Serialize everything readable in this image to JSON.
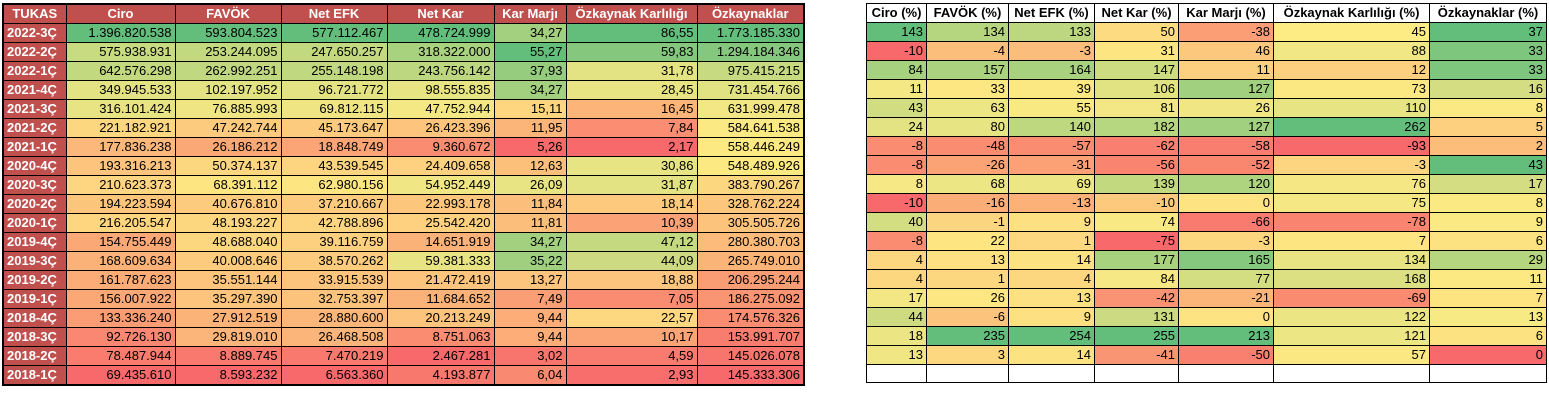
{
  "left": {
    "headers": [
      "TUKAS",
      "Ciro",
      "FAVÖK",
      "Net EFK",
      "Net Kar",
      "Kar Marjı",
      "Özkaynak Karlılığı",
      "Özkaynaklar"
    ],
    "rows": [
      [
        "2022-3Ç",
        "1.396.820.538",
        "593.804.523",
        "577.112.467",
        "478.724.999",
        "34,27",
        "86,55",
        "1.773.185.330"
      ],
      [
        "2022-2Ç",
        "575.938.931",
        "253.244.095",
        "247.650.257",
        "318.322.000",
        "55,27",
        "59,83",
        "1.294.184.346"
      ],
      [
        "2022-1Ç",
        "642.576.298",
        "262.992.251",
        "255.148.198",
        "243.756.142",
        "37,93",
        "31,78",
        "975.415.215"
      ],
      [
        "2021-4Ç",
        "349.945.533",
        "102.197.952",
        "96.721.772",
        "98.555.835",
        "34,27",
        "28,45",
        "731.454.766"
      ],
      [
        "2021-3Ç",
        "316.101.424",
        "76.885.993",
        "69.812.115",
        "47.752.944",
        "15,11",
        "16,45",
        "631.999.478"
      ],
      [
        "2021-2Ç",
        "221.182.921",
        "47.242.744",
        "45.173.647",
        "26.423.396",
        "11,95",
        "7,84",
        "584.641.538"
      ],
      [
        "2021-1Ç",
        "177.836.238",
        "26.186.212",
        "18.848.749",
        "9.360.672",
        "5,26",
        "2,17",
        "558.446.249"
      ],
      [
        "2020-4Ç",
        "193.316.213",
        "50.374.137",
        "43.539.545",
        "24.409.658",
        "12,63",
        "30,86",
        "548.489.926"
      ],
      [
        "2020-3Ç",
        "210.623.373",
        "68.391.112",
        "62.980.156",
        "54.952.449",
        "26,09",
        "31,87",
        "383.790.267"
      ],
      [
        "2020-2Ç",
        "194.223.594",
        "40.676.810",
        "37.210.667",
        "22.993.178",
        "11,84",
        "18,14",
        "328.762.224"
      ],
      [
        "2020-1Ç",
        "216.205.547",
        "48.193.227",
        "42.788.896",
        "25.542.420",
        "11,81",
        "10,39",
        "305.505.726"
      ],
      [
        "2019-4Ç",
        "154.755.449",
        "48.688.040",
        "39.116.759",
        "14.651.919",
        "34,27",
        "47,12",
        "280.380.703"
      ],
      [
        "2019-3Ç",
        "168.609.634",
        "40.008.646",
        "38.570.262",
        "59.381.333",
        "35,22",
        "44,09",
        "265.749.010"
      ],
      [
        "2019-2Ç",
        "161.787.623",
        "35.551.144",
        "33.915.539",
        "21.472.419",
        "13,27",
        "18,88",
        "206.295.244"
      ],
      [
        "2019-1Ç",
        "156.007.922",
        "35.297.390",
        "32.753.397",
        "11.684.652",
        "7,49",
        "7,05",
        "186.275.092"
      ],
      [
        "2018-4Ç",
        "133.336.240",
        "27.912.519",
        "28.880.600",
        "20.213.249",
        "9,44",
        "22,57",
        "174.576.326"
      ],
      [
        "2018-3Ç",
        "92.726.130",
        "29.819.010",
        "26.468.508",
        "8.751.063",
        "9,44",
        "10,17",
        "153.991.707"
      ],
      [
        "2018-2Ç",
        "78.487.944",
        "8.889.745",
        "7.470.219",
        "2.467.281",
        "3,02",
        "4,59",
        "145.026.078"
      ],
      [
        "2018-1Ç",
        "69.435.610",
        "8.593.232",
        "6.563.360",
        "4.193.877",
        "6,04",
        "2,93",
        "145.333.306"
      ]
    ],
    "colors": [
      [
        "#63be7b",
        "#63be7b",
        "#63be7b",
        "#63be7b",
        "#a3d07f",
        "#63be7b",
        "#63be7b"
      ],
      [
        "#c9db81",
        "#c2d980",
        "#c2d980",
        "#a9d27f",
        "#63be7b",
        "#84c77d",
        "#84c77d"
      ],
      [
        "#c2d980",
        "#c0d880",
        "#c0d880",
        "#bcd780",
        "#96cc7e",
        "#e4e383",
        "#c7da81"
      ],
      [
        "#e3e383",
        "#e4e383",
        "#e4e383",
        "#e6e483",
        "#a3d07f",
        "#e8e483",
        "#e1e282"
      ],
      [
        "#e8e483",
        "#efe683",
        "#efe683",
        "#f3e884",
        "#fed680",
        "#fcb479",
        "#f2e784"
      ],
      [
        "#fdd680",
        "#fccb7e",
        "#fccb7e",
        "#fcc47c",
        "#fcb579",
        "#fa8d72",
        "#fbe983"
      ],
      [
        "#fcb87a",
        "#fba877",
        "#fba475",
        "#fa8c71",
        "#f8696b",
        "#f8696b",
        "#fde982"
      ],
      [
        "#fcc47c",
        "#fdd680",
        "#fdd480",
        "#fdd17f",
        "#fcc07b",
        "#e6e483",
        "#fde982"
      ],
      [
        "#fed580",
        "#fde682",
        "#fde682",
        "#f0e784",
        "#e9e483",
        "#e3e383",
        "#fdd680"
      ],
      [
        "#fcc57c",
        "#fccb7e",
        "#fccb7e",
        "#fcc67d",
        "#fcbe7b",
        "#fdc97d",
        "#fcc67d"
      ],
      [
        "#fed680",
        "#fdd680",
        "#fdd580",
        "#fdd17f",
        "#fcbe7b",
        "#fba376",
        "#fcc37c"
      ],
      [
        "#fba877",
        "#fdd680",
        "#fdd07f",
        "#fbb278",
        "#a3d07f",
        "#c4d980",
        "#fcbb7a"
      ],
      [
        "#fbb278",
        "#fccb7e",
        "#fccb7e",
        "#e8e483",
        "#9fcf7f",
        "#cdda81",
        "#fbb478"
      ],
      [
        "#fbac77",
        "#fcc47c",
        "#fcc47c",
        "#fcc47c",
        "#fcc47c",
        "#fcc47c",
        "#fa9d74"
      ],
      [
        "#fba877",
        "#fcc47c",
        "#fcc37c",
        "#fbb278",
        "#fa9f75",
        "#fa8c71",
        "#fa9573"
      ],
      [
        "#fa9d74",
        "#fbb378",
        "#fbb679",
        "#fcc47c",
        "#fcad78",
        "#fdd880",
        "#fa8c71"
      ],
      [
        "#f98772",
        "#fbb479",
        "#fbb479",
        "#fa8c71",
        "#fcad78",
        "#fba476",
        "#f97d6f"
      ],
      [
        "#f97c6e",
        "#f9796e",
        "#f9796e",
        "#f8696b",
        "#f8756d",
        "#f97a6e",
        "#f8756d"
      ],
      [
        "#f8696b",
        "#f8696b",
        "#f8696b",
        "#f9786e",
        "#f98a71",
        "#f86e6c",
        "#f8696b"
      ]
    ]
  },
  "right": {
    "headers": [
      "Ciro (%)",
      "FAVÖK (%)",
      "Net EFK (%)",
      "Net Kar (%)",
      "Kar Marjı (%)",
      "Özkaynak Karlılığı (%)",
      "Özkaynaklar (%)"
    ],
    "rows": [
      [
        "143",
        "134",
        "133",
        "50",
        "-38",
        "45",
        "37"
      ],
      [
        "-10",
        "-4",
        "-3",
        "31",
        "46",
        "88",
        "33"
      ],
      [
        "84",
        "157",
        "164",
        "147",
        "11",
        "12",
        "33"
      ],
      [
        "11",
        "33",
        "39",
        "106",
        "127",
        "73",
        "16"
      ],
      [
        "43",
        "63",
        "55",
        "81",
        "26",
        "110",
        "8"
      ],
      [
        "24",
        "80",
        "140",
        "182",
        "127",
        "262",
        "5"
      ],
      [
        "-8",
        "-48",
        "-57",
        "-62",
        "-58",
        "-93",
        "2"
      ],
      [
        "-8",
        "-26",
        "-31",
        "-56",
        "-52",
        "-3",
        "43"
      ],
      [
        "8",
        "68",
        "69",
        "139",
        "120",
        "76",
        "17"
      ],
      [
        "-10",
        "-16",
        "-13",
        "-10",
        "0",
        "75",
        "8"
      ],
      [
        "40",
        "-1",
        "9",
        "74",
        "-66",
        "-78",
        "9"
      ],
      [
        "-8",
        "22",
        "1",
        "-75",
        "-3",
        "7",
        "6"
      ],
      [
        "4",
        "13",
        "14",
        "177",
        "165",
        "134",
        "29"
      ],
      [
        "4",
        "1",
        "4",
        "84",
        "77",
        "168",
        "11"
      ],
      [
        "17",
        "26",
        "13",
        "-42",
        "-21",
        "-69",
        "7"
      ],
      [
        "44",
        "-6",
        "9",
        "131",
        "0",
        "122",
        "13"
      ],
      [
        "18",
        "235",
        "254",
        "255",
        "213",
        "121",
        "6"
      ],
      [
        "13",
        "3",
        "14",
        "-41",
        "-50",
        "57",
        "0"
      ],
      [
        "",
        "",
        "",
        "",
        "",
        "",
        ""
      ]
    ],
    "colors": [
      [
        "#63be7b",
        "#b5d57f",
        "#bcd780",
        "#fcdb81",
        "#fb9e75",
        "#fdeb84",
        "#63be7b"
      ],
      [
        "#f8696b",
        "#fcbe7b",
        "#fbbd7b",
        "#fde582",
        "#fcc87d",
        "#f1e784",
        "#7ec67d"
      ],
      [
        "#a6d17f",
        "#abd37f",
        "#a9d27f",
        "#cddb81",
        "#fdd07f",
        "#fcd07f",
        "#7ec67d"
      ],
      [
        "#f4e884",
        "#fce783",
        "#fce883",
        "#e1e282",
        "#a1d07f",
        "#fbe883",
        "#d5dd82"
      ],
      [
        "#d2dd82",
        "#ede685",
        "#f8e983",
        "#f2e784",
        "#f0e784",
        "#e7e483",
        "#fbe983"
      ],
      [
        "#e4e383",
        "#e6e483",
        "#bed880",
        "#b6d680",
        "#a1d07f",
        "#63be7b",
        "#fcd07f"
      ],
      [
        "#fa8c71",
        "#fa8c71",
        "#fa8c71",
        "#f98070",
        "#f97e6f",
        "#f8696b",
        "#fcbd7b"
      ],
      [
        "#fa8c71",
        "#fca376",
        "#fca075",
        "#f98570",
        "#f98770",
        "#fdd480",
        "#63be7b"
      ],
      [
        "#f6e884",
        "#ede685",
        "#ede685",
        "#c3d980",
        "#aed47f",
        "#f5e884",
        "#d5dd82"
      ],
      [
        "#f8696b",
        "#fbad78",
        "#fcb179",
        "#fcc97d",
        "#fde382",
        "#f5e884",
        "#fbe983"
      ],
      [
        "#d3dd82",
        "#fcd580",
        "#fde081",
        "#f9e984",
        "#f97a6e",
        "#f98470",
        "#fbe983"
      ],
      [
        "#fa8c71",
        "#fde682",
        "#fdd880",
        "#f8696b",
        "#fdd780",
        "#fde682",
        "#fde281"
      ],
      [
        "#fdd680",
        "#fde081",
        "#fde281",
        "#a9d27f",
        "#86c87d",
        "#e8e483",
        "#b5d57f"
      ],
      [
        "#fdd680",
        "#fdd680",
        "#fdd680",
        "#f6e884",
        "#d3dd82",
        "#dde082",
        "#fde982"
      ],
      [
        "#f2e784",
        "#fde782",
        "#fde081",
        "#fa9373",
        "#fcb579",
        "#fa8b71",
        "#fde481"
      ],
      [
        "#cfdb81",
        "#fcc37c",
        "#fde081",
        "#ccdb81",
        "#fde382",
        "#ebe583",
        "#f7e984"
      ],
      [
        "#ebe583",
        "#63be7b",
        "#63be7b",
        "#63be7b",
        "#63be7b",
        "#ede685",
        "#fde281"
      ],
      [
        "#f0e784",
        "#fdd880",
        "#fde281",
        "#fa9574",
        "#f97f6f",
        "#fce883",
        "#f8696b"
      ],
      [
        "#ffffff",
        "#ffffff",
        "#ffffff",
        "#ffffff",
        "#ffffff",
        "#ffffff",
        "#ffffff"
      ]
    ]
  }
}
